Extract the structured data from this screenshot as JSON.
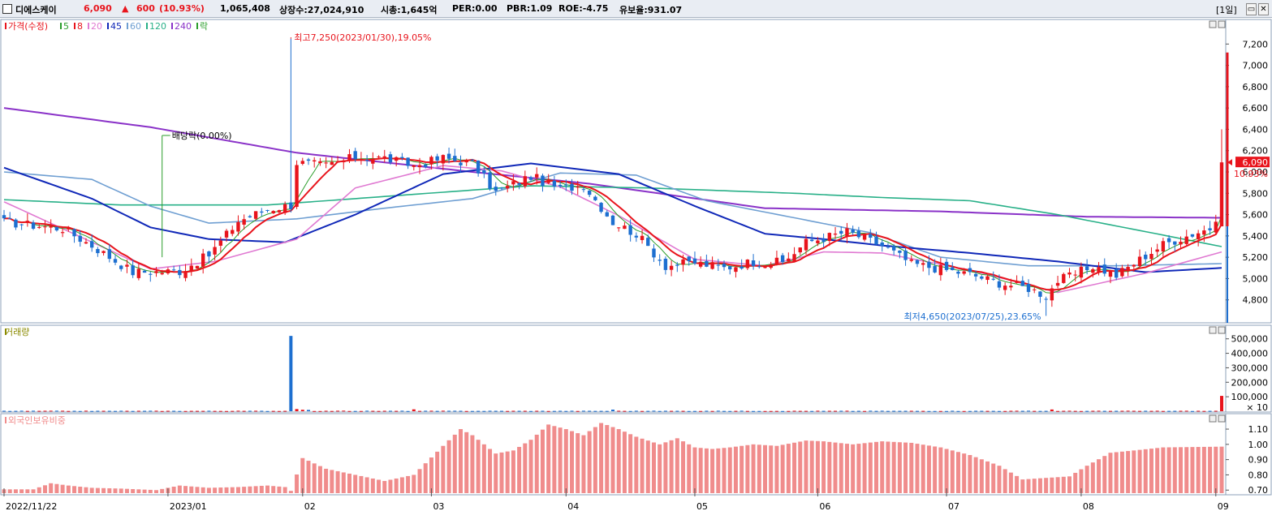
{
  "header": {
    "name": "디에스케이",
    "price": "6,090",
    "change_arrow": "▲",
    "change": "600",
    "change_pct": "(10.93%)",
    "volume": "1,065,408",
    "listed": "상장수:27,024,910",
    "mcap": "시총:1,645억",
    "per": "PER:0.00",
    "pbr": "PBR:1.09",
    "roe": "ROE:-4.75",
    "float": "유보율:931.07",
    "period": "[1일]",
    "close_btn": "✕",
    "restore_btn": "▭"
  },
  "colors": {
    "up": "#e8141c",
    "down": "#1d6fd0",
    "ma5": "#2a9d2a",
    "ma8": "#e8141c",
    "ma20": "#e07ad2",
    "ma45": "#1028b8",
    "ma60": "#6f9fd2",
    "ma120": "#28b088",
    "ma240": "#8a32c8",
    "foreign": "#f08c8c"
  },
  "chart_data": [
    {
      "type": "candlestick",
      "title": "가격(수정)",
      "legend": [
        {
          "label": "가격(수정)",
          "color": "#e8141c"
        },
        {
          "label": "5",
          "color": "#2a9d2a"
        },
        {
          "label": "8",
          "color": "#e8141c"
        },
        {
          "label": "20",
          "color": "#e07ad2"
        },
        {
          "label": "45",
          "color": "#1028b8"
        },
        {
          "label": "60",
          "color": "#6f9fd2"
        },
        {
          "label": "120",
          "color": "#28b088"
        },
        {
          "label": "240",
          "color": "#8a32c8"
        },
        {
          "label": "락",
          "color": "#2a9d2a"
        }
      ],
      "ylim": [
        4600,
        7400
      ],
      "yticks": [
        "7,200",
        "7,000",
        "6,800",
        "6,600",
        "6,400",
        "6,200",
        "6,000",
        "5,800",
        "5,600",
        "5,400",
        "5,200",
        "5,000",
        "4,800"
      ],
      "price_label": "6,090",
      "pct_label": "10.93%",
      "annotations": {
        "high": "최고7,250(2023/01/30),19.05%",
        "low": "최저4,650(2023/07/25),23.65%",
        "dividend": "배당락(0.00%)"
      },
      "anchors": [
        [
          0,
          5530
        ],
        [
          10,
          5470
        ],
        [
          15,
          5310
        ],
        [
          22,
          5060
        ],
        [
          30,
          5070
        ],
        [
          35,
          5220
        ],
        [
          40,
          5540
        ],
        [
          45,
          5650
        ],
        [
          49,
          5690
        ],
        [
          50,
          6090
        ],
        [
          55,
          6060
        ],
        [
          60,
          6140
        ],
        [
          65,
          6130
        ],
        [
          70,
          6060
        ],
        [
          75,
          6130
        ],
        [
          80,
          6080
        ],
        [
          84,
          5810
        ],
        [
          90,
          5960
        ],
        [
          95,
          5840
        ],
        [
          99,
          5880
        ],
        [
          104,
          5530
        ],
        [
          108,
          5420
        ],
        [
          113,
          5120
        ],
        [
          118,
          5150
        ],
        [
          123,
          5100
        ],
        [
          128,
          5160
        ],
        [
          133,
          5150
        ],
        [
          137,
          5340
        ],
        [
          144,
          5440
        ],
        [
          150,
          5310
        ],
        [
          155,
          5140
        ],
        [
          160,
          5090
        ],
        [
          165,
          5040
        ],
        [
          170,
          4960
        ],
        [
          175,
          4910
        ],
        [
          178,
          4840
        ],
        [
          180,
          4980
        ],
        [
          183,
          5040
        ],
        [
          186,
          5120
        ],
        [
          190,
          5030
        ],
        [
          194,
          5180
        ],
        [
          198,
          5320
        ],
        [
          203,
          5420
        ],
        [
          207,
          5490
        ],
        [
          208,
          6090
        ]
      ],
      "ma_lines": {
        "ma20": [
          [
            0,
            5720
          ],
          [
            25,
            5090
          ],
          [
            36,
            5160
          ],
          [
            50,
            5370
          ],
          [
            60,
            5850
          ],
          [
            75,
            6060
          ],
          [
            85,
            6010
          ],
          [
            95,
            5860
          ],
          [
            105,
            5590
          ],
          [
            118,
            5180
          ],
          [
            130,
            5120
          ],
          [
            140,
            5250
          ],
          [
            150,
            5240
          ],
          [
            165,
            5080
          ],
          [
            180,
            4870
          ],
          [
            195,
            5050
          ],
          [
            208,
            5250
          ]
        ],
        "ma45": [
          [
            0,
            6040
          ],
          [
            15,
            5750
          ],
          [
            25,
            5480
          ],
          [
            35,
            5370
          ],
          [
            48,
            5340
          ],
          [
            60,
            5600
          ],
          [
            75,
            5980
          ],
          [
            90,
            6080
          ],
          [
            105,
            5980
          ],
          [
            118,
            5680
          ],
          [
            130,
            5420
          ],
          [
            140,
            5370
          ],
          [
            150,
            5310
          ],
          [
            165,
            5240
          ],
          [
            180,
            5160
          ],
          [
            195,
            5060
          ],
          [
            208,
            5100
          ]
        ],
        "ma60": [
          [
            0,
            6000
          ],
          [
            15,
            5930
          ],
          [
            25,
            5680
          ],
          [
            35,
            5520
          ],
          [
            50,
            5560
          ],
          [
            65,
            5660
          ],
          [
            80,
            5750
          ],
          [
            95,
            5990
          ],
          [
            108,
            5970
          ],
          [
            120,
            5730
          ],
          [
            135,
            5570
          ],
          [
            148,
            5430
          ],
          [
            160,
            5200
          ],
          [
            175,
            5120
          ],
          [
            190,
            5120
          ],
          [
            208,
            5140
          ]
        ],
        "ma120": [
          [
            0,
            5740
          ],
          [
            20,
            5690
          ],
          [
            45,
            5690
          ],
          [
            70,
            5790
          ],
          [
            90,
            5870
          ],
          [
            110,
            5850
          ],
          [
            135,
            5800
          ],
          [
            150,
            5760
          ],
          [
            165,
            5730
          ],
          [
            180,
            5600
          ],
          [
            195,
            5440
          ],
          [
            208,
            5300
          ]
        ],
        "ma240": [
          [
            0,
            6600
          ],
          [
            25,
            6420
          ],
          [
            50,
            6180
          ],
          [
            80,
            6000
          ],
          [
            100,
            5890
          ],
          [
            130,
            5660
          ],
          [
            160,
            5630
          ],
          [
            185,
            5580
          ],
          [
            208,
            5570
          ]
        ]
      },
      "dividend_index": 27
    },
    {
      "type": "bar",
      "title": "거래량",
      "ylim": [
        0,
        560000
      ],
      "yticks": [
        "500,000",
        "400,000",
        "300,000",
        "200,000",
        "100,000"
      ],
      "unit_label": "× 10",
      "spikes": [
        [
          49,
          520000
        ],
        [
          50,
          15000
        ],
        [
          51,
          10000
        ],
        [
          52,
          9000
        ],
        [
          58,
          4000
        ],
        [
          70,
          13000
        ],
        [
          104,
          11000
        ],
        [
          179,
          12000
        ],
        [
          208,
          106000
        ]
      ],
      "baseline": 2500
    },
    {
      "type": "bar",
      "title": "외국인보유비중",
      "ylim": [
        0.68,
        1.18
      ],
      "yticks": [
        "1.10",
        "1.00",
        "0.90",
        "0.80",
        "0.70"
      ],
      "anchors": [
        [
          0,
          0.705
        ],
        [
          5,
          0.705
        ],
        [
          8,
          0.745
        ],
        [
          11,
          0.73
        ],
        [
          15,
          0.715
        ],
        [
          20,
          0.71
        ],
        [
          26,
          0.7
        ],
        [
          30,
          0.73
        ],
        [
          35,
          0.715
        ],
        [
          40,
          0.72
        ],
        [
          45,
          0.73
        ],
        [
          48,
          0.72
        ],
        [
          49,
          0.695
        ],
        [
          51,
          0.91
        ],
        [
          55,
          0.84
        ],
        [
          60,
          0.8
        ],
        [
          65,
          0.76
        ],
        [
          70,
          0.8
        ],
        [
          75,
          0.99
        ],
        [
          78,
          1.1
        ],
        [
          80,
          1.06
        ],
        [
          84,
          0.94
        ],
        [
          87,
          0.96
        ],
        [
          90,
          1.03
        ],
        [
          93,
          1.13
        ],
        [
          96,
          1.1
        ],
        [
          99,
          1.06
        ],
        [
          102,
          1.14
        ],
        [
          105,
          1.1
        ],
        [
          108,
          1.05
        ],
        [
          112,
          1.0
        ],
        [
          115,
          1.04
        ],
        [
          118,
          0.98
        ],
        [
          121,
          0.97
        ],
        [
          124,
          0.98
        ],
        [
          128,
          1.0
        ],
        [
          132,
          0.99
        ],
        [
          137,
          1.025
        ],
        [
          140,
          1.02
        ],
        [
          145,
          1.0
        ],
        [
          150,
          1.02
        ],
        [
          155,
          1.01
        ],
        [
          160,
          0.98
        ],
        [
          165,
          0.93
        ],
        [
          170,
          0.86
        ],
        [
          174,
          0.77
        ],
        [
          178,
          0.78
        ],
        [
          182,
          0.79
        ],
        [
          185,
          0.86
        ],
        [
          189,
          0.945
        ],
        [
          193,
          0.96
        ],
        [
          198,
          0.98
        ],
        [
          208,
          0.985
        ]
      ]
    }
  ],
  "x_axis": {
    "labels": [
      {
        "label": "2022/11/22",
        "index": 0
      },
      {
        "label": "2023/01",
        "index": 28
      },
      {
        "label": "02",
        "index": 51
      },
      {
        "label": "03",
        "index": 73
      },
      {
        "label": "04",
        "index": 96
      },
      {
        "label": "05",
        "index": 118
      },
      {
        "label": "06",
        "index": 139
      },
      {
        "label": "07",
        "index": 161
      },
      {
        "label": "08",
        "index": 184
      },
      {
        "label": "09",
        "index": 207
      }
    ]
  }
}
